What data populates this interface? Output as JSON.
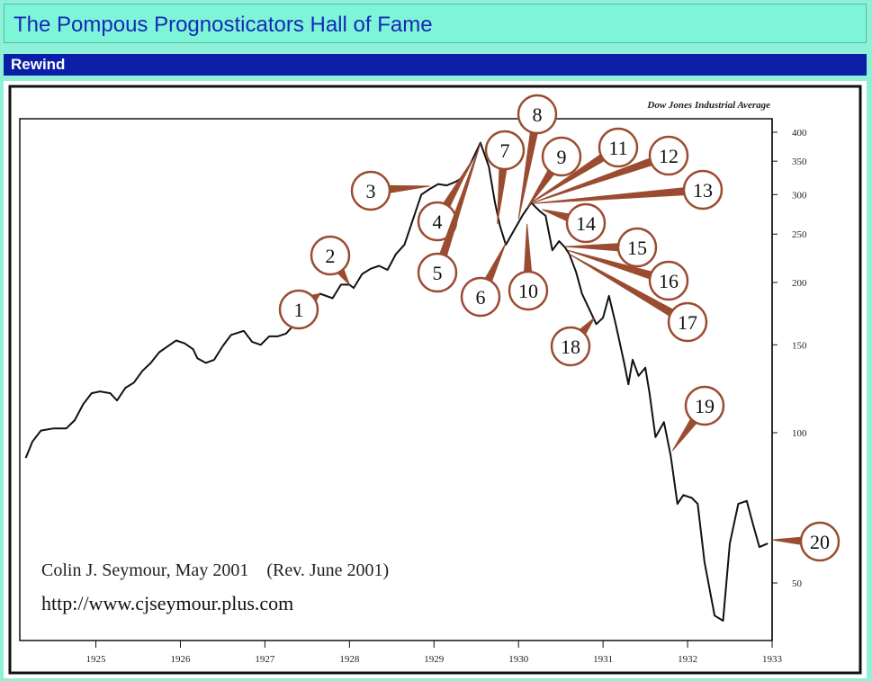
{
  "header": {
    "title": "The Pompous Prognosticators Hall of Fame"
  },
  "section": {
    "label": "Rewind"
  },
  "chart_data": {
    "type": "line",
    "title": "Dow Jones Industrial Average",
    "xlabel": "",
    "ylabel": "",
    "y_scale": "log",
    "xlim": [
      1924.1,
      1933.0
    ],
    "x_ticks": [
      "1925",
      "1926",
      "1927",
      "1928",
      "1929",
      "1930",
      "1931",
      "1932",
      "1933"
    ],
    "y_ticks": [
      {
        "value": 400,
        "label": "400"
      },
      {
        "value": 350,
        "label": "350"
      },
      {
        "value": 300,
        "label": "300"
      },
      {
        "value": 250,
        "label": "250"
      },
      {
        "value": 200,
        "label": "200"
      },
      {
        "value": 150,
        "label": "150"
      },
      {
        "value": 100,
        "label": "100"
      },
      {
        "value": 50,
        "label": "50"
      }
    ],
    "series": [
      {
        "points": [
          [
            1924.17,
            89
          ],
          [
            1924.25,
            96
          ],
          [
            1924.35,
            101
          ],
          [
            1924.5,
            102
          ],
          [
            1924.65,
            102
          ],
          [
            1924.75,
            106
          ],
          [
            1924.85,
            114
          ],
          [
            1924.95,
            120
          ],
          [
            1925.05,
            121
          ],
          [
            1925.17,
            120
          ],
          [
            1925.25,
            116
          ],
          [
            1925.35,
            123
          ],
          [
            1925.45,
            126
          ],
          [
            1925.55,
            133
          ],
          [
            1925.65,
            138
          ],
          [
            1925.75,
            145
          ],
          [
            1925.85,
            149
          ],
          [
            1925.95,
            153
          ],
          [
            1926.05,
            151
          ],
          [
            1926.15,
            147
          ],
          [
            1926.2,
            141
          ],
          [
            1926.3,
            138
          ],
          [
            1926.4,
            140
          ],
          [
            1926.5,
            149
          ],
          [
            1926.6,
            157
          ],
          [
            1926.75,
            160
          ],
          [
            1926.85,
            152
          ],
          [
            1926.95,
            150
          ],
          [
            1927.05,
            156
          ],
          [
            1927.15,
            156
          ],
          [
            1927.25,
            158
          ],
          [
            1927.35,
            165
          ],
          [
            1927.45,
            171
          ],
          [
            1927.55,
            180
          ],
          [
            1927.65,
            190
          ],
          [
            1927.8,
            186
          ],
          [
            1927.9,
            198
          ],
          [
            1928.0,
            198
          ],
          [
            1928.05,
            195
          ],
          [
            1928.15,
            208
          ],
          [
            1928.25,
            213
          ],
          [
            1928.35,
            216
          ],
          [
            1928.45,
            212
          ],
          [
            1928.55,
            228
          ],
          [
            1928.65,
            238
          ],
          [
            1928.72,
            258
          ],
          [
            1928.85,
            300
          ],
          [
            1928.95,
            308
          ],
          [
            1929.05,
            315
          ],
          [
            1929.15,
            313
          ],
          [
            1929.25,
            318
          ],
          [
            1929.35,
            325
          ],
          [
            1929.45,
            351
          ],
          [
            1929.55,
            381
          ],
          [
            1929.65,
            341
          ],
          [
            1929.72,
            290
          ],
          [
            1929.78,
            260
          ],
          [
            1929.85,
            238
          ],
          [
            1929.95,
            255
          ],
          [
            1930.05,
            273
          ],
          [
            1930.15,
            289
          ],
          [
            1930.25,
            278
          ],
          [
            1930.32,
            272
          ],
          [
            1930.4,
            232
          ],
          [
            1930.48,
            242
          ],
          [
            1930.55,
            235
          ],
          [
            1930.6,
            228
          ],
          [
            1930.68,
            210
          ],
          [
            1930.75,
            190
          ],
          [
            1930.85,
            175
          ],
          [
            1930.92,
            165
          ],
          [
            1931.0,
            170
          ],
          [
            1931.07,
            188
          ],
          [
            1931.15,
            165
          ],
          [
            1931.25,
            138
          ],
          [
            1931.3,
            125
          ],
          [
            1931.35,
            140
          ],
          [
            1931.42,
            130
          ],
          [
            1931.5,
            135
          ],
          [
            1931.55,
            120
          ],
          [
            1931.62,
            98
          ],
          [
            1931.72,
            105
          ],
          [
            1931.8,
            90
          ],
          [
            1931.88,
            72
          ],
          [
            1931.95,
            75
          ],
          [
            1932.05,
            74
          ],
          [
            1932.12,
            72
          ],
          [
            1932.2,
            55
          ],
          [
            1932.32,
            43
          ],
          [
            1932.42,
            42
          ],
          [
            1932.5,
            60
          ],
          [
            1932.6,
            72
          ],
          [
            1932.7,
            73
          ],
          [
            1932.78,
            65
          ],
          [
            1932.85,
            59
          ],
          [
            1932.95,
            60
          ]
        ]
      }
    ],
    "annotations": [
      {
        "label": "1",
        "anchor": [
          1927.65,
          190
        ]
      },
      {
        "label": "2",
        "anchor": [
          1928.0,
          198
        ]
      },
      {
        "label": "3",
        "anchor": [
          1928.95,
          312
        ]
      },
      {
        "label": "4",
        "anchor": [
          1929.45,
          351
        ]
      },
      {
        "label": "5",
        "anchor": [
          1929.55,
          380
        ]
      },
      {
        "label": "6",
        "anchor": [
          1929.85,
          240
        ]
      },
      {
        "label": "7",
        "anchor": [
          1929.75,
          262
        ]
      },
      {
        "label": "8",
        "anchor": [
          1930.0,
          268
        ]
      },
      {
        "label": "9",
        "anchor": [
          1930.1,
          282
        ]
      },
      {
        "label": "10",
        "anchor": [
          1930.1,
          262
        ]
      },
      {
        "label": "11",
        "anchor": [
          1930.15,
          289
        ]
      },
      {
        "label": "12",
        "anchor": [
          1930.17,
          289
        ]
      },
      {
        "label": "13",
        "anchor": [
          1930.17,
          288
        ]
      },
      {
        "label": "14",
        "anchor": [
          1930.28,
          280
        ]
      },
      {
        "label": "15",
        "anchor": [
          1930.55,
          236
        ]
      },
      {
        "label": "16",
        "anchor": [
          1930.58,
          232
        ]
      },
      {
        "label": "17",
        "anchor": [
          1930.6,
          228
        ]
      },
      {
        "label": "18",
        "anchor": [
          1930.9,
          170
        ]
      },
      {
        "label": "19",
        "anchor": [
          1931.82,
          92
        ]
      },
      {
        "label": "20",
        "anchor": [
          1933.0,
          61
        ]
      }
    ],
    "credit": {
      "line1": "Colin J. Seymour, May 2001    (Rev. June 2001)",
      "line2": "http://www.cjseymour.plus.com"
    },
    "grid": false,
    "legend": "none",
    "colors": {
      "line": "#111111",
      "callout": "#9a4c30",
      "callout_fill": "#ffffff"
    }
  }
}
